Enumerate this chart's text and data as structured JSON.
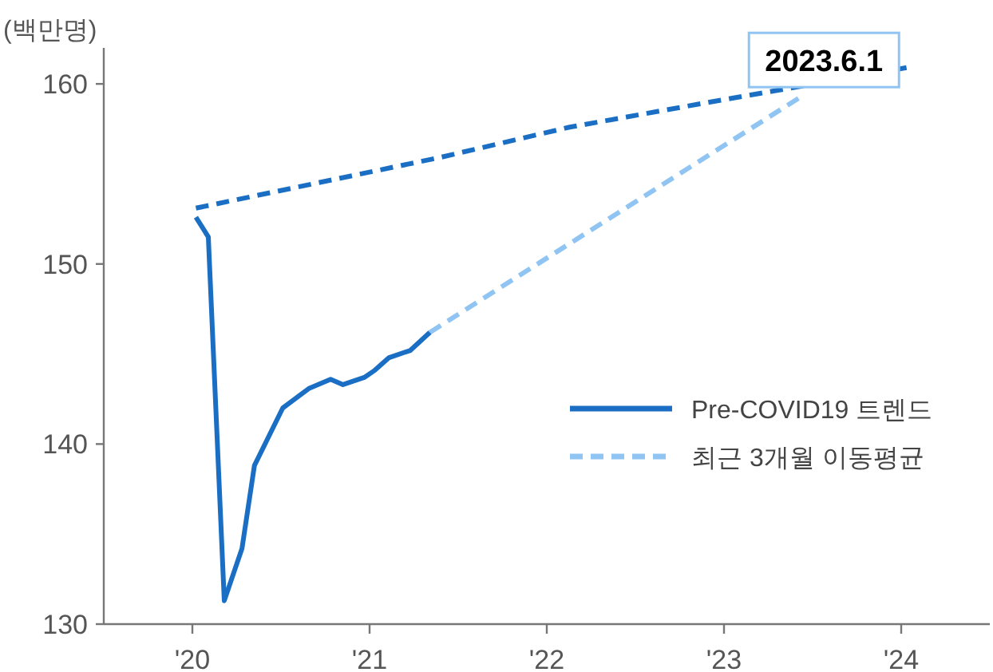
{
  "chart_data": {
    "type": "line",
    "ylabel": "(백만명)",
    "xlim": [
      2019.5,
      2024.5
    ],
    "xticks": [
      {
        "value": 2020,
        "label": "'20"
      },
      {
        "value": 2021,
        "label": "'21"
      },
      {
        "value": 2022,
        "label": "'22"
      },
      {
        "value": 2023,
        "label": "'23"
      },
      {
        "value": 2024,
        "label": "'24"
      }
    ],
    "ylim": [
      130,
      162
    ],
    "yticks": [
      130,
      140,
      150,
      160
    ],
    "series": [
      {
        "color": "#1a6fc4",
        "line_style": "dashed",
        "x": [
          2020.02,
          2021.39,
          2022.13,
          2022.87,
          2024.03
        ],
        "values": [
          153.1,
          155.9,
          157.6,
          158.9,
          160.9
        ]
      },
      {
        "name": "Pre-COVID19 트렌드",
        "color": "#1a6fc4",
        "line_style": "solid",
        "x": [
          2020.02,
          2020.09,
          2020.18,
          2020.28,
          2020.35,
          2020.51,
          2020.66,
          2020.78,
          2020.85,
          2020.97,
          2021.03,
          2021.11,
          2021.23,
          2021.34
        ],
        "values": [
          152.6,
          151.5,
          131.3,
          134.2,
          138.8,
          142.0,
          143.1,
          143.6,
          143.3,
          143.7,
          144.1,
          144.8,
          145.2,
          146.2
        ]
      },
      {
        "name": "최근 3개월 이동평균",
        "color": "#90c4f2",
        "line_style": "dashed",
        "x": [
          2021.34,
          2023.42
        ],
        "values": [
          146.2,
          159.2
        ]
      }
    ],
    "legend": "right",
    "grid": false,
    "annotations": [
      {
        "text": "2023.6.1",
        "x": 2023.42,
        "y": 159.2
      }
    ]
  }
}
